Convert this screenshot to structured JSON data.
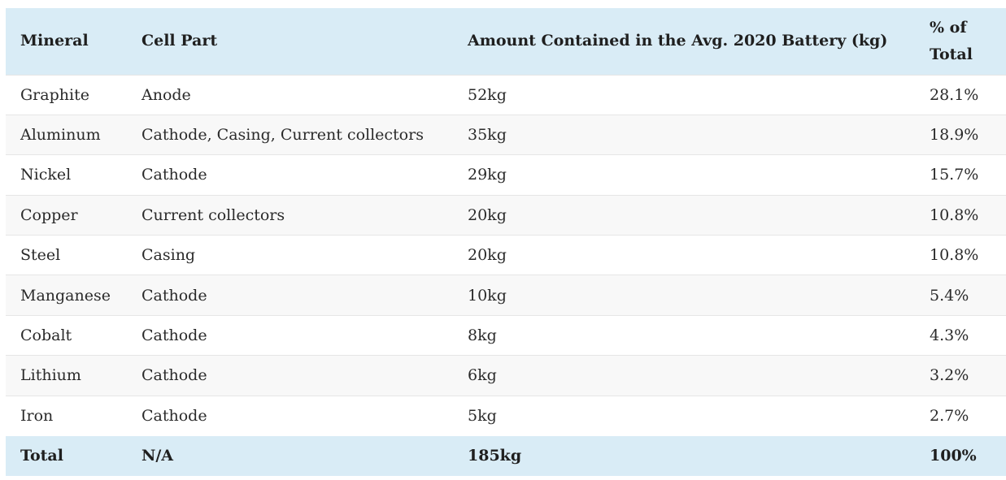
{
  "table": {
    "headers": {
      "mineral": "Mineral",
      "cell_part": "Cell Part",
      "amount": "Amount Contained in the Avg. 2020 Battery (kg)",
      "pct_line1": "% of",
      "pct_line2": "Total"
    },
    "rows": [
      {
        "mineral": "Graphite",
        "cell_part": "Anode",
        "amount": "52kg",
        "pct": "28.1%"
      },
      {
        "mineral": "Aluminum",
        "cell_part": "Cathode, Casing, Current collectors",
        "amount": "35kg",
        "pct": "18.9%"
      },
      {
        "mineral": "Nickel",
        "cell_part": "Cathode",
        "amount": "29kg",
        "pct": "15.7%"
      },
      {
        "mineral": "Copper",
        "cell_part": "Current collectors",
        "amount": "20kg",
        "pct": "10.8%"
      },
      {
        "mineral": "Steel",
        "cell_part": "Casing",
        "amount": "20kg",
        "pct": "10.8%"
      },
      {
        "mineral": "Manganese",
        "cell_part": "Cathode",
        "amount": "10kg",
        "pct": "5.4%"
      },
      {
        "mineral": "Cobalt",
        "cell_part": "Cathode",
        "amount": "8kg",
        "pct": "4.3%"
      },
      {
        "mineral": "Lithium",
        "cell_part": "Cathode",
        "amount": "6kg",
        "pct": "3.2%"
      },
      {
        "mineral": "Iron",
        "cell_part": "Cathode",
        "amount": "5kg",
        "pct": "2.7%"
      }
    ],
    "total": {
      "mineral": "Total",
      "cell_part": "N/A",
      "amount": "185kg",
      "pct": "100%"
    }
  },
  "colors": {
    "header_bg": "#d9ecf6",
    "row_alt_bg": "#f8f8f8",
    "row_border": "#e6e6e6"
  }
}
